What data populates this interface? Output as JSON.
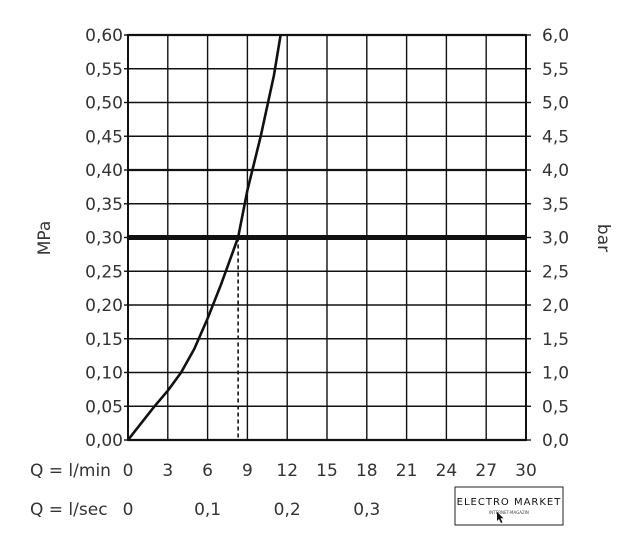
{
  "chart_data": {
    "type": "line",
    "title": "",
    "y_left": {
      "label": "MPa",
      "range": [
        0,
        0.6
      ],
      "ticks": [
        "0,00",
        "0,05",
        "0,10",
        "0,15",
        "0,20",
        "0,25",
        "0,30",
        "0,35",
        "0,40",
        "0,45",
        "0,50",
        "0,55",
        "0,60"
      ]
    },
    "y_right": {
      "label": "bar",
      "range": [
        0,
        6
      ],
      "ticks": [
        "0,0",
        "0,5",
        "1,0",
        "1,5",
        "2,0",
        "2,5",
        "3,0",
        "3,5",
        "4,0",
        "4,5",
        "5,0",
        "5,5",
        "6,0"
      ]
    },
    "x_lmin": {
      "label": "Q = l/min",
      "range": [
        0,
        30
      ],
      "ticks": [
        "0",
        "3",
        "6",
        "9",
        "12",
        "15",
        "18",
        "21",
        "24",
        "27",
        "30"
      ]
    },
    "x_lsec": {
      "label": "Q = l/sec",
      "ticks": [
        {
          "value": 0,
          "label": "0"
        },
        {
          "value": 0.1,
          "label": "0,1"
        },
        {
          "value": 0.2,
          "label": "0,2"
        },
        {
          "value": 0.3,
          "label": "0,3"
        }
      ]
    },
    "grid": true,
    "series": [
      {
        "x": [
          0,
          1,
          2,
          3,
          4,
          5,
          6,
          7,
          8.3,
          9,
          10,
          11,
          11.5
        ],
        "y": [
          0,
          0.025,
          0.05,
          0.073,
          0.1,
          0.135,
          0.18,
          0.23,
          0.3,
          0.37,
          0.45,
          0.54,
          0.6
        ]
      }
    ],
    "reference_line": {
      "y": 0.3
    },
    "marker": {
      "x": 8.3
    }
  },
  "logo": {
    "name": "ELECTRO MARKET",
    "tagline": "INTERNET-MAGAZIN"
  }
}
